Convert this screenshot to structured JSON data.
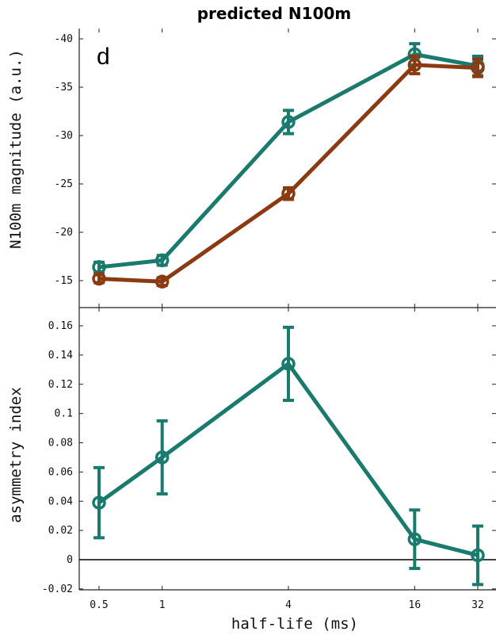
{
  "chart_data": [
    {
      "type": "line",
      "title": "predicted N100m",
      "panel_label": "d",
      "xlabel": "",
      "ylabel": "N100m magnitude (a.u.)",
      "x_scale": "log2",
      "x": [
        0.5,
        1,
        4,
        16,
        32
      ],
      "x_tick_labels": [
        "0.5",
        "1",
        "4",
        "16",
        "32"
      ],
      "y_inverted": true,
      "ylim": [
        -13,
        -41
      ],
      "y_ticks": [
        -15,
        -20,
        -25,
        -30,
        -35,
        -40
      ],
      "y_tick_labels": [
        "-15",
        "-20",
        "-25",
        "-30",
        "-35",
        "-40"
      ],
      "grid": false,
      "series": [
        {
          "color": "#1a7a6e",
          "values": [
            -16.4,
            -17.1,
            -31.4,
            -38.4,
            -37.2
          ],
          "errors": [
            0.5,
            0.5,
            1.2,
            1.1,
            1.0
          ]
        },
        {
          "color": "#8b3a12",
          "values": [
            -15.2,
            -14.9,
            -24.0,
            -37.3,
            -37.0
          ],
          "errors": [
            0.4,
            0.4,
            0.6,
            0.9,
            0.9
          ]
        }
      ]
    },
    {
      "type": "line",
      "title": "",
      "xlabel": "half-life (ms)",
      "ylabel": "asymmetry index",
      "x_scale": "log2",
      "x": [
        0.5,
        1,
        4,
        16,
        32
      ],
      "x_tick_labels": [
        "0.5",
        "1",
        "4",
        "16",
        "32"
      ],
      "ylim": [
        -0.02,
        0.17
      ],
      "y_ticks": [
        -0.02,
        0,
        0.02,
        0.04,
        0.06,
        0.08,
        0.1,
        0.12,
        0.14,
        0.16
      ],
      "y_tick_labels": [
        "-0.02",
        "0",
        "0.02",
        "0.04",
        "0.06",
        "0.08",
        "0.1",
        "0.12",
        "0.14",
        "0.16"
      ],
      "zero_line": true,
      "grid": false,
      "series": [
        {
          "color": "#1a7a6e",
          "values": [
            0.039,
            0.07,
            0.134,
            0.014,
            0.003
          ],
          "errors": [
            0.024,
            0.025,
            0.025,
            0.02,
            0.02
          ]
        }
      ]
    }
  ]
}
